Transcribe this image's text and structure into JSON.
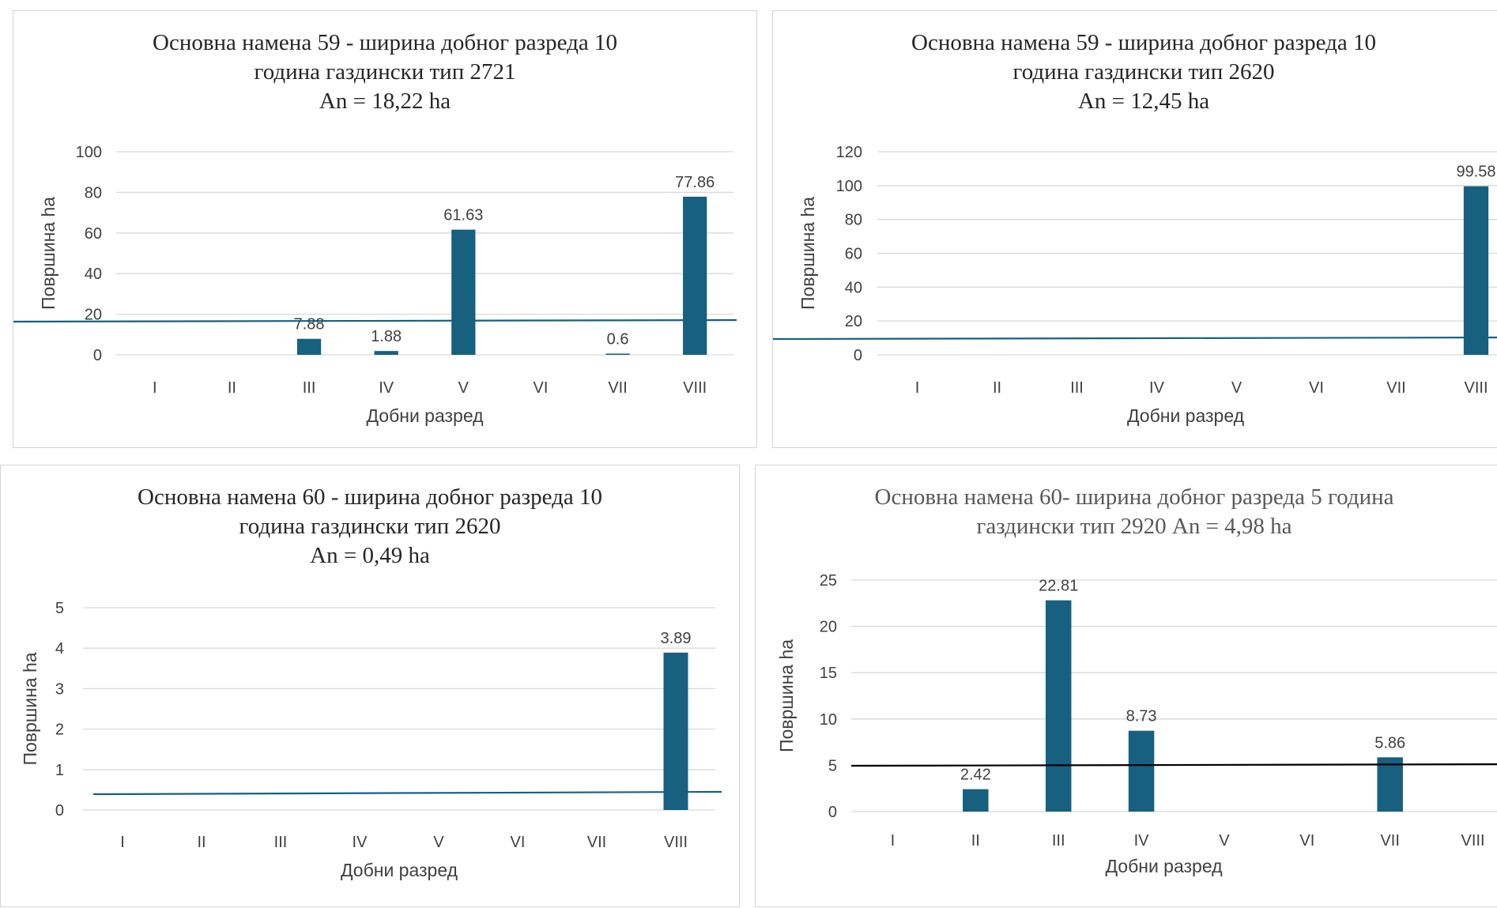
{
  "chart_data": [
    {
      "type": "bar",
      "title_lines": [
        "Основна намена 59 - ширина добног разреда 10",
        "година газдински тип 2721",
        "An = 18,22 ha"
      ],
      "xlabel": "Добни разред",
      "ylabel": "Површина ha",
      "categories": [
        "I",
        "II",
        "III",
        "IV",
        "V",
        "VI",
        "VII",
        "VIII"
      ],
      "values": [
        null,
        null,
        7.88,
        1.88,
        61.63,
        null,
        0.6,
        77.86
      ],
      "data_labels": [
        "",
        "",
        "7.88",
        "1.88",
        "61.63",
        "",
        "0.6",
        "77.86"
      ],
      "yticks": [
        "0",
        "20",
        "40",
        "60",
        "80",
        "100"
      ],
      "ylim": [
        0,
        100
      ],
      "reference_line": 18.22,
      "bar_color": "#17607f",
      "line_color": "#17607f",
      "grid": true
    },
    {
      "type": "bar",
      "title_lines": [
        "Основна намена 59 - ширина добног разреда 10",
        "година газдински тип 2620",
        "An = 12,45 ha"
      ],
      "xlabel": "Добни разред",
      "ylabel": "Површина ha",
      "categories": [
        "I",
        "II",
        "III",
        "IV",
        "V",
        "VI",
        "VII",
        "VIII"
      ],
      "values": [
        null,
        null,
        null,
        null,
        null,
        null,
        null,
        99.58
      ],
      "data_labels": [
        "",
        "",
        "",
        "",
        "",
        "",
        "",
        "99.58"
      ],
      "yticks": [
        "0",
        "20",
        "40",
        "60",
        "80",
        "100",
        "120"
      ],
      "ylim": [
        0,
        120
      ],
      "reference_line": 12.45,
      "bar_color": "#17607f",
      "line_color": "#17607f",
      "grid": true
    },
    {
      "type": "bar",
      "title_lines": [
        "Основна намена 60 - ширина добног разреда 10",
        "година газдински тип 2620",
        "An = 0,49 ha"
      ],
      "xlabel": "Добни разред",
      "ylabel": "Површина ha",
      "categories": [
        "I",
        "II",
        "III",
        "IV",
        "V",
        "VI",
        "VII",
        "VIII"
      ],
      "values": [
        null,
        null,
        null,
        null,
        null,
        null,
        null,
        3.89
      ],
      "data_labels": [
        "",
        "",
        "",
        "",
        "",
        "",
        "",
        "3.89"
      ],
      "yticks": [
        "0",
        "1",
        "2",
        "3",
        "4",
        "5"
      ],
      "ylim": [
        0,
        5
      ],
      "reference_line": 0.49,
      "bar_color": "#17607f",
      "line_color": "#17607f",
      "grid": true
    },
    {
      "type": "bar",
      "title_lines": [
        "Основна намена 60- ширина добног разреда 5 година",
        "газдински тип 2920  An = 4,98 ha"
      ],
      "xlabel": "Добни разред",
      "ylabel": "Површина ha",
      "categories": [
        "I",
        "II",
        "III",
        "IV",
        "V",
        "VI",
        "VII",
        "VIII"
      ],
      "values": [
        null,
        2.42,
        22.81,
        8.73,
        null,
        null,
        5.86,
        null
      ],
      "data_labels": [
        "",
        "2.42",
        "22.81",
        "8.73",
        "",
        "",
        "5.86",
        ""
      ],
      "yticks": [
        "0",
        "5",
        "10",
        "15",
        "20",
        "25"
      ],
      "ylim": [
        0,
        25
      ],
      "reference_line": 4.98,
      "bar_color": "#17607f",
      "line_color": "#000000",
      "grid": true
    }
  ]
}
